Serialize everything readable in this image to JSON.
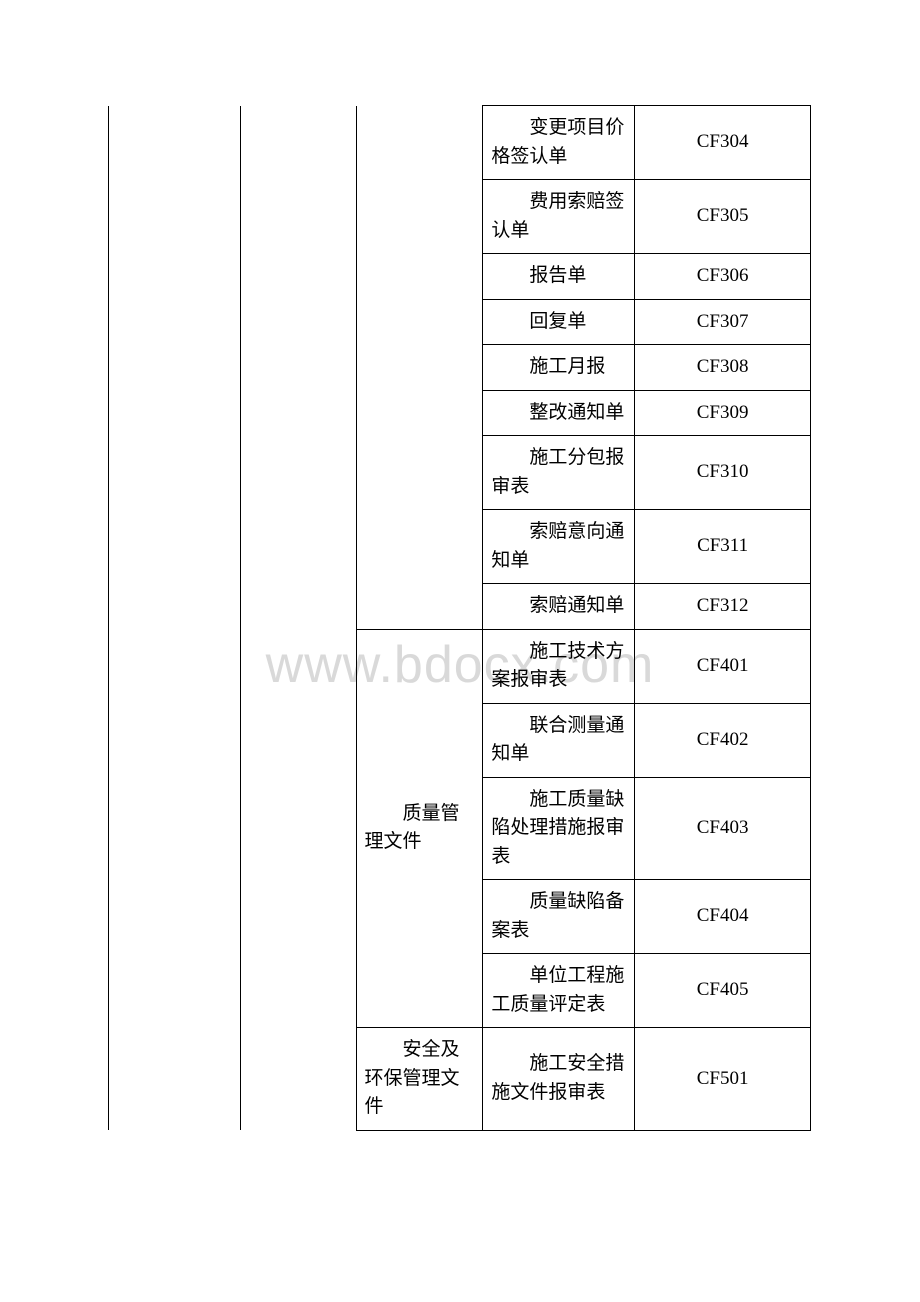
{
  "watermark": "www.bdocx.com",
  "table": {
    "border_color": "#000000",
    "background_color": "#ffffff",
    "text_color": "#000000",
    "watermark_color": "#d9d9d9",
    "font_size": 19,
    "categories": {
      "quality": "　　质量管理文件",
      "safety": "　　安全及环保管理文件"
    },
    "rows": [
      {
        "category": "",
        "item": "　　变更项目价格签认单",
        "code": "CF304"
      },
      {
        "category": "",
        "item": "　　费用索赔签认单",
        "code": "CF305"
      },
      {
        "category": "",
        "item": "　　报告单",
        "code": "CF306"
      },
      {
        "category": "",
        "item": "　　回复单",
        "code": "CF307"
      },
      {
        "category": "",
        "item": "　　施工月报",
        "code": "CF308"
      },
      {
        "category": "",
        "item": "　　整改通知单",
        "code": "CF309"
      },
      {
        "category": "",
        "item": "　　施工分包报审表",
        "code": "CF310"
      },
      {
        "category": "",
        "item": "　　索赔意向通知单",
        "code": "CF311"
      },
      {
        "category": "",
        "item": "　　索赔通知单",
        "code": "CF312"
      },
      {
        "category": "quality",
        "item": "　　施工技术方案报审表",
        "code": "CF401"
      },
      {
        "category": "",
        "item": "　　联合测量通知单",
        "code": "CF402"
      },
      {
        "category": "",
        "item": "　　施工质量缺陷处理措施报审表",
        "code": "CF403"
      },
      {
        "category": "",
        "item": "　　质量缺陷备案表",
        "code": "CF404"
      },
      {
        "category": "",
        "item": "　　单位工程施工质量评定表",
        "code": "CF405"
      },
      {
        "category": "safety",
        "item": "　　施工安全措施文件报审表",
        "code": "CF501"
      }
    ]
  }
}
